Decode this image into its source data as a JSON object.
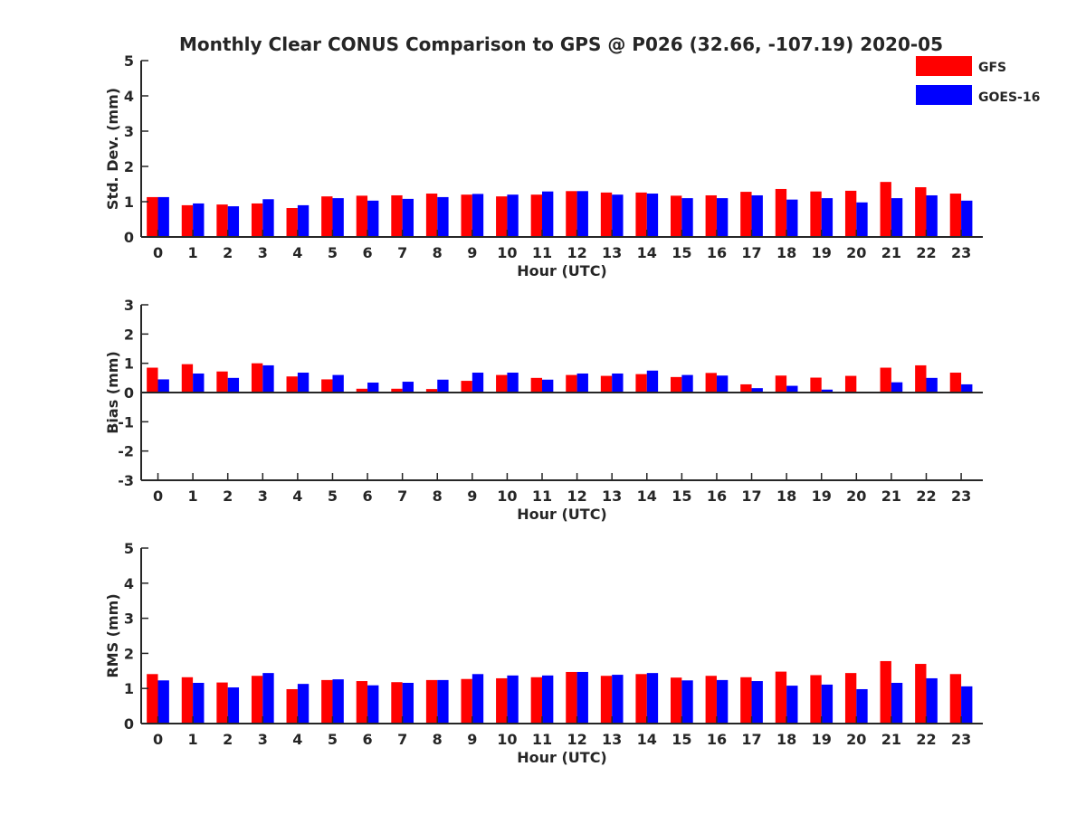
{
  "title": "Monthly Clear CONUS Comparison to GPS @ P026 (32.66, -107.19) 2020-05",
  "legend": {
    "placement": "top-right",
    "entries": [
      {
        "name": "GFS",
        "color": "#ff0000"
      },
      {
        "name": "GOES-16",
        "color": "#0000ff"
      }
    ]
  },
  "chart_data": [
    {
      "type": "bar",
      "xlabel": "Hour (UTC)",
      "ylabel": "Std. Dev. (mm)",
      "ylim": [
        0,
        5
      ],
      "yticks": [
        0,
        1,
        2,
        3,
        4,
        5
      ],
      "categories": [
        "0",
        "1",
        "2",
        "3",
        "4",
        "5",
        "6",
        "7",
        "8",
        "9",
        "10",
        "11",
        "12",
        "13",
        "14",
        "15",
        "16",
        "17",
        "18",
        "19",
        "20",
        "21",
        "22",
        "23"
      ],
      "series": [
        {
          "name": "GFS",
          "color": "#ff0000",
          "values": [
            1.13,
            0.9,
            0.92,
            0.95,
            0.82,
            1.15,
            1.17,
            1.18,
            1.23,
            1.2,
            1.15,
            1.2,
            1.3,
            1.26,
            1.26,
            1.17,
            1.18,
            1.28,
            1.36,
            1.29,
            1.31,
            1.56,
            1.41,
            1.23
          ]
        },
        {
          "name": "GOES-16",
          "color": "#0000ff",
          "values": [
            1.13,
            0.95,
            0.87,
            1.07,
            0.9,
            1.1,
            1.03,
            1.08,
            1.13,
            1.22,
            1.2,
            1.29,
            1.3,
            1.2,
            1.23,
            1.1,
            1.1,
            1.18,
            1.06,
            1.1,
            0.98,
            1.1,
            1.18,
            1.03
          ]
        }
      ]
    },
    {
      "type": "bar",
      "xlabel": "Hour (UTC)",
      "ylabel": "Bias (mm)",
      "ylim": [
        -3,
        3
      ],
      "yticks": [
        -3,
        -2,
        -1,
        0,
        1,
        2,
        3
      ],
      "categories": [
        "0",
        "1",
        "2",
        "3",
        "4",
        "5",
        "6",
        "7",
        "8",
        "9",
        "10",
        "11",
        "12",
        "13",
        "14",
        "15",
        "16",
        "17",
        "18",
        "19",
        "20",
        "21",
        "22",
        "23"
      ],
      "series": [
        {
          "name": "GFS",
          "color": "#ff0000",
          "values": [
            0.85,
            0.97,
            0.72,
            1.0,
            0.55,
            0.45,
            0.13,
            0.13,
            0.12,
            0.4,
            0.6,
            0.5,
            0.6,
            0.57,
            0.63,
            0.53,
            0.67,
            0.28,
            0.58,
            0.51,
            0.57,
            0.85,
            0.93,
            0.68
          ]
        },
        {
          "name": "GOES-16",
          "color": "#0000ff",
          "values": [
            0.45,
            0.65,
            0.5,
            0.93,
            0.68,
            0.6,
            0.34,
            0.37,
            0.44,
            0.68,
            0.68,
            0.44,
            0.65,
            0.65,
            0.75,
            0.6,
            0.58,
            0.15,
            0.23,
            0.1,
            0.03,
            0.35,
            0.5,
            0.28
          ]
        }
      ]
    },
    {
      "type": "bar",
      "xlabel": "Hour (UTC)",
      "ylabel": "RMS (mm)",
      "ylim": [
        0,
        5
      ],
      "yticks": [
        0,
        1,
        2,
        3,
        4,
        5
      ],
      "categories": [
        "0",
        "1",
        "2",
        "3",
        "4",
        "5",
        "6",
        "7",
        "8",
        "9",
        "10",
        "11",
        "12",
        "13",
        "14",
        "15",
        "16",
        "17",
        "18",
        "19",
        "20",
        "21",
        "22",
        "23"
      ],
      "series": [
        {
          "name": "GFS",
          "color": "#ff0000",
          "values": [
            1.41,
            1.32,
            1.17,
            1.36,
            0.98,
            1.24,
            1.21,
            1.18,
            1.24,
            1.27,
            1.29,
            1.32,
            1.47,
            1.36,
            1.41,
            1.31,
            1.36,
            1.32,
            1.48,
            1.38,
            1.44,
            1.78,
            1.7,
            1.41
          ]
        },
        {
          "name": "GOES-16",
          "color": "#0000ff",
          "values": [
            1.23,
            1.16,
            1.03,
            1.44,
            1.13,
            1.26,
            1.09,
            1.16,
            1.24,
            1.41,
            1.37,
            1.37,
            1.47,
            1.39,
            1.44,
            1.23,
            1.24,
            1.21,
            1.08,
            1.11,
            0.98,
            1.16,
            1.29,
            1.06
          ]
        }
      ]
    }
  ]
}
